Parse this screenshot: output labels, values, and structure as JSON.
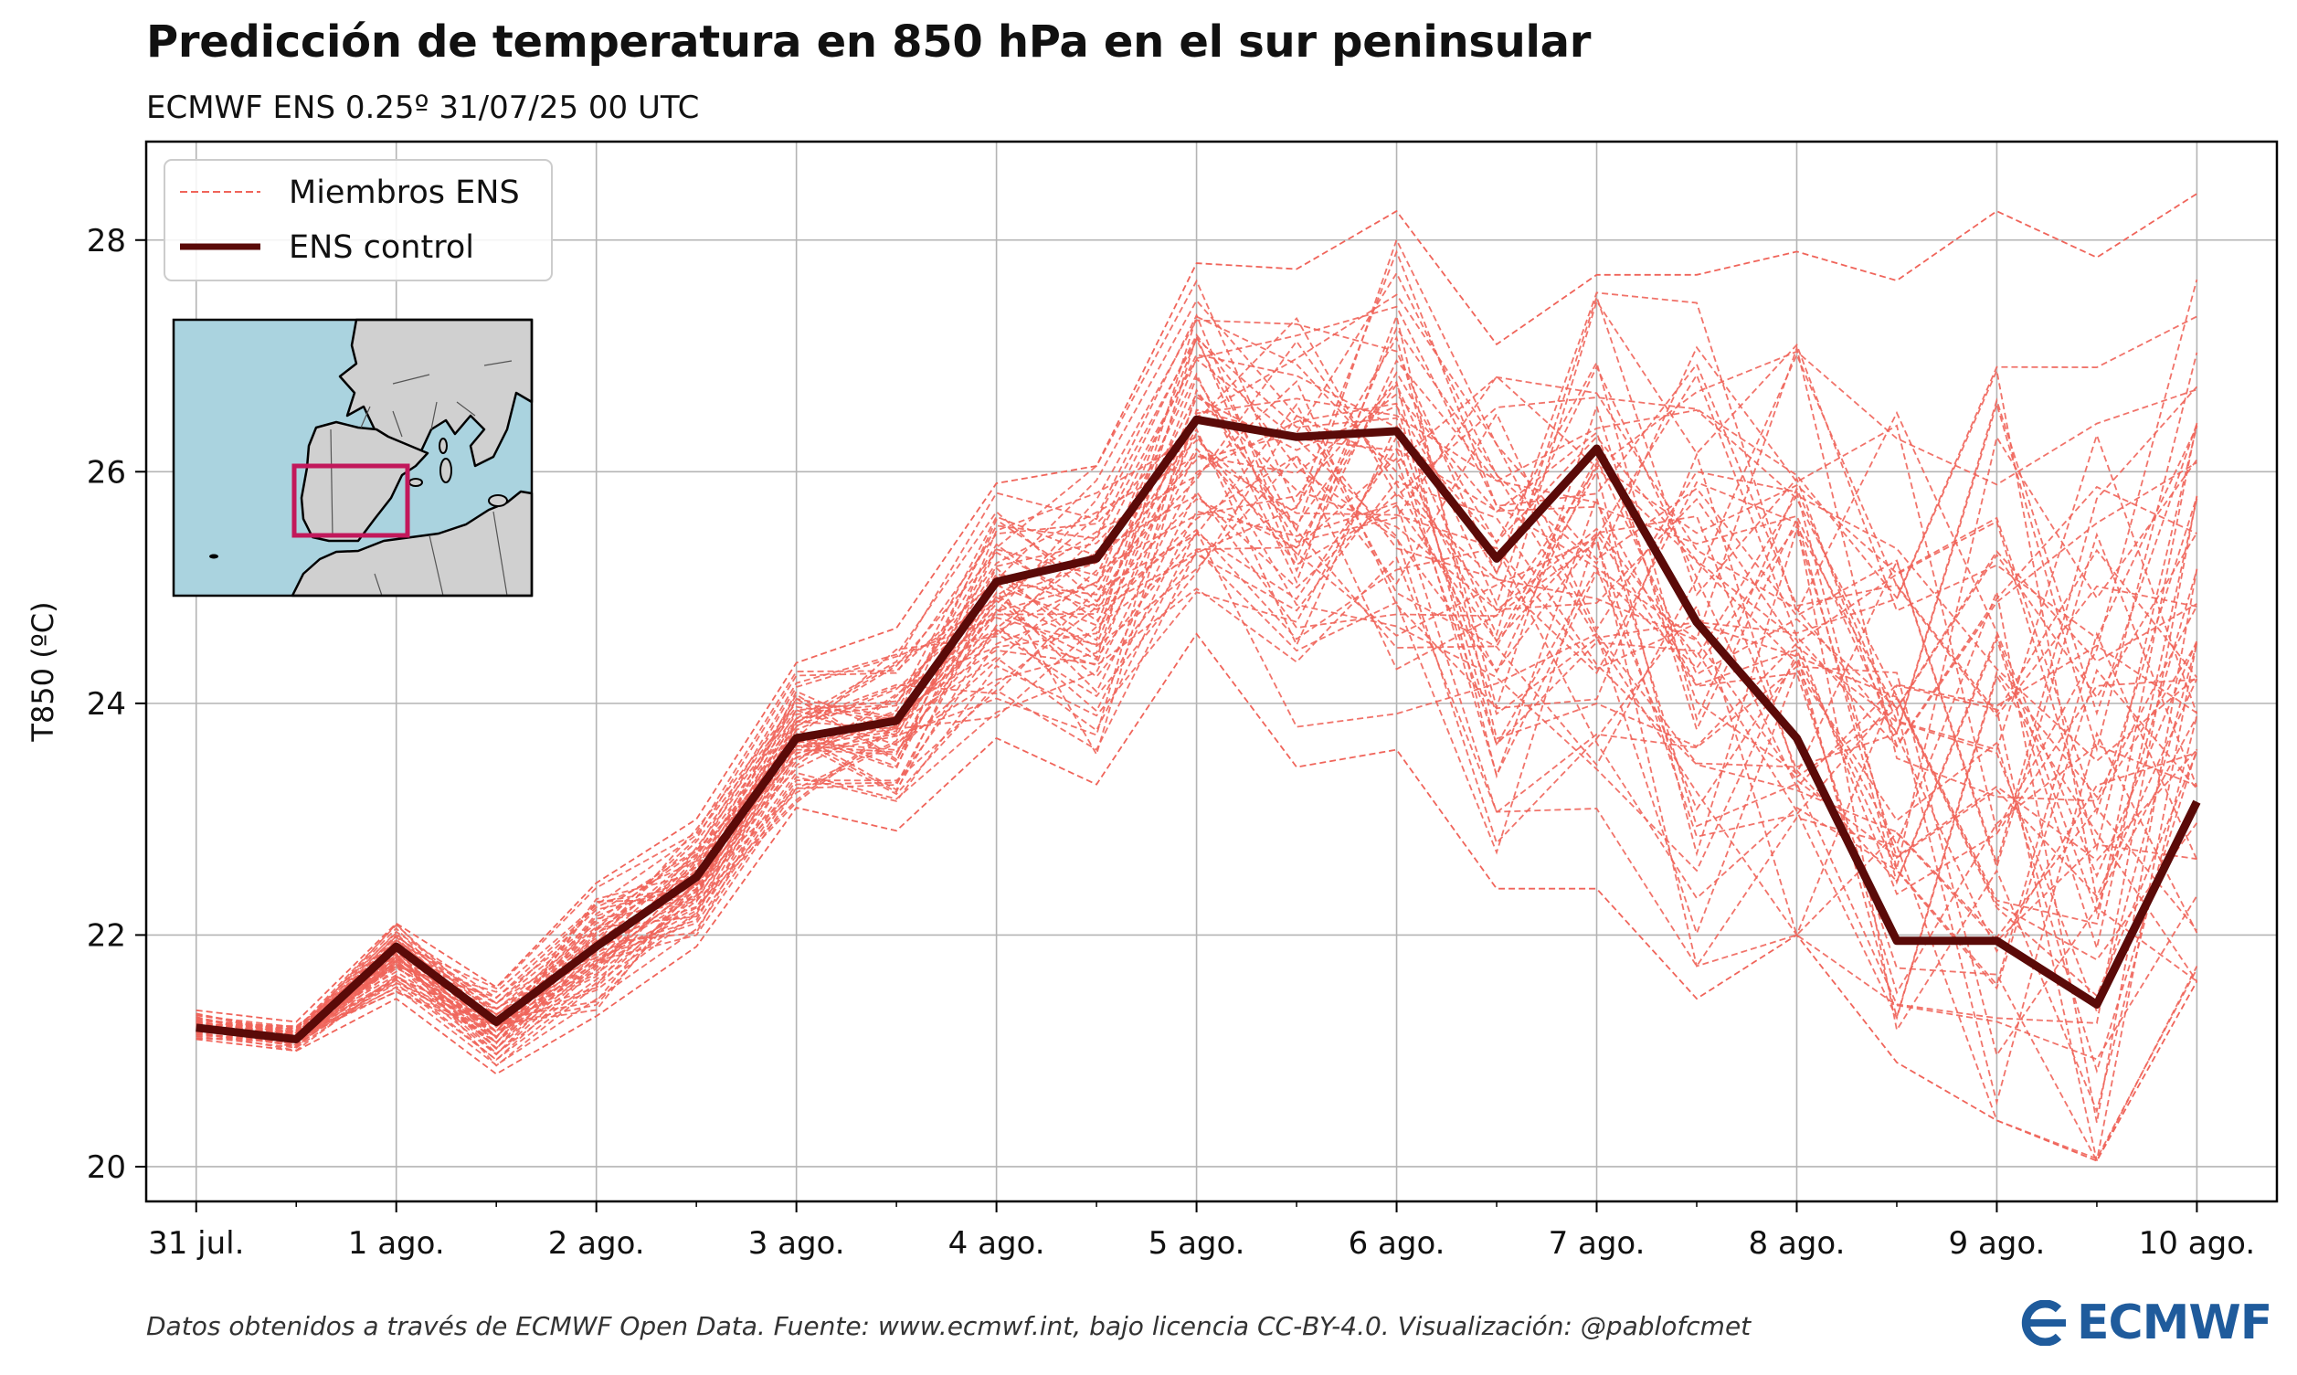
{
  "title": "Predicción de temperatura en 850 hPa en el sur peninsular",
  "subtitle": "ECMWF ENS 0.25º 31/07/25 00 UTC",
  "footer": "Datos obtenidos a través de ECMWF Open Data. Fuente: www.ecmwf.int, bajo licencia CC-BY-4.0. Visualización: @pablofcmet",
  "logo_text": "ECMWF",
  "colors": {
    "members": "#f0645a",
    "control": "#5a0a08",
    "grid": "#b4b4b4",
    "map_sea": "#aad3df",
    "map_land": "#d0d0d0",
    "map_box": "#c2185b",
    "logo": "#1f5b9c"
  },
  "chart_data": {
    "type": "line",
    "ylabel": "T850 (ºC)",
    "ylim": [
      19.7,
      28.85
    ],
    "yticks": [
      20,
      22,
      24,
      26,
      28
    ],
    "xlim": [
      -0.5,
      20.8
    ],
    "xticks": [
      {
        "pos": 0,
        "label": "31 jul."
      },
      {
        "pos": 2,
        "label": "1 ago."
      },
      {
        "pos": 4,
        "label": "2 ago."
      },
      {
        "pos": 6,
        "label": "3 ago."
      },
      {
        "pos": 8,
        "label": "4 ago."
      },
      {
        "pos": 10,
        "label": "5 ago."
      },
      {
        "pos": 12,
        "label": "6 ago."
      },
      {
        "pos": 14,
        "label": "7 ago."
      },
      {
        "pos": 16,
        "label": "8 ago."
      },
      {
        "pos": 18,
        "label": "9 ago."
      },
      {
        "pos": 20,
        "label": "10 ago."
      }
    ],
    "grid": true,
    "legend_position": "top-left",
    "legend": [
      {
        "label": "Miembros ENS",
        "style": "dashed"
      },
      {
        "label": "ENS control",
        "style": "solid"
      }
    ],
    "control": {
      "name": "ENS control",
      "x": [
        0,
        1,
        2,
        3,
        4,
        5,
        6,
        7,
        8,
        9,
        10,
        11,
        12,
        13,
        14,
        15,
        16,
        17,
        18,
        19,
        20
      ],
      "values": [
        21.2,
        21.1,
        21.9,
        21.25,
        21.9,
        22.5,
        23.7,
        23.85,
        25.05,
        25.25,
        26.45,
        26.3,
        26.35,
        25.25,
        26.2,
        24.7,
        23.7,
        21.95,
        21.95,
        21.4,
        23.15
      ]
    },
    "members_envelope": {
      "name": "Miembros ENS",
      "count": 50,
      "x": [
        0,
        1,
        2,
        3,
        4,
        5,
        6,
        7,
        8,
        9,
        10,
        11,
        12,
        13,
        14,
        15,
        16,
        17,
        18,
        19,
        20
      ],
      "low": [
        21.1,
        21.0,
        21.45,
        20.8,
        21.3,
        21.9,
        23.1,
        22.9,
        23.7,
        23.3,
        24.6,
        23.45,
        23.6,
        22.4,
        22.4,
        21.45,
        22.0,
        20.9,
        20.4,
        20.05,
        21.6
      ],
      "high": [
        21.35,
        21.25,
        22.1,
        21.55,
        22.45,
        23.0,
        24.35,
        24.65,
        25.9,
        26.05,
        27.8,
        27.75,
        28.25,
        27.1,
        27.7,
        27.7,
        27.9,
        27.65,
        28.25,
        27.85,
        28.4
      ]
    },
    "inset_map": {
      "region": "sur peninsular",
      "box_lon": [
        -7.0,
        2.0
      ],
      "box_lat": [
        36.0,
        39.0
      ]
    }
  }
}
